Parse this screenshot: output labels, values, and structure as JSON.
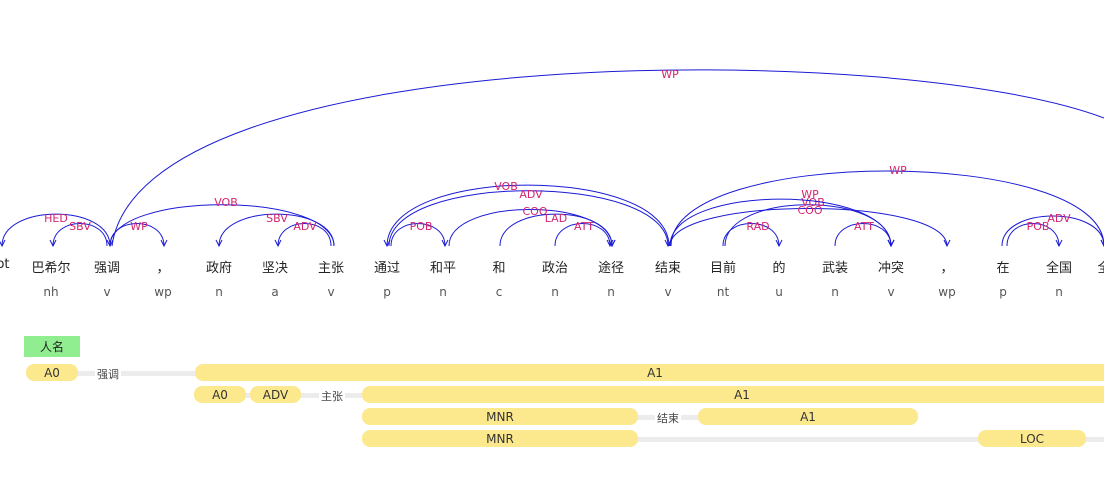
{
  "words": [
    "ot",
    "巴希尔",
    "强调",
    "，",
    "政府",
    "坚决",
    "主张",
    "通过",
    "和平",
    "和",
    "政治",
    "途径",
    "结束",
    "目前",
    "的",
    "武装",
    "冲突",
    "，",
    "在",
    "全国",
    "全"
  ],
  "pos": [
    "",
    "nh",
    "v",
    "wp",
    "n",
    "a",
    "v",
    "p",
    "n",
    "c",
    "n",
    "n",
    "v",
    "nt",
    "u",
    "n",
    "v",
    "wp",
    "p",
    "n",
    ""
  ],
  "arcs": [
    {
      "label": "HED"
    },
    {
      "label": "SBV"
    },
    {
      "label": "WP"
    },
    {
      "label": "VOB"
    },
    {
      "label": "SBV"
    },
    {
      "label": "ADV"
    },
    {
      "label": "POB"
    },
    {
      "label": "COO"
    },
    {
      "label": "LAD"
    },
    {
      "label": "ATT"
    },
    {
      "label": "ADV"
    },
    {
      "label": "VOB"
    },
    {
      "label": "RAD"
    },
    {
      "label": "ATT"
    },
    {
      "label": "VOB"
    },
    {
      "label": "WP"
    },
    {
      "label": "COO"
    },
    {
      "label": "WP"
    },
    {
      "label": "POB"
    },
    {
      "label": "ADV"
    }
  ],
  "ner": {
    "label": "人名"
  },
  "srl": {
    "rows": [
      {
        "predicate": "强调",
        "args": [
          "A0",
          "A1"
        ]
      },
      {
        "predicate": "主张",
        "args": [
          "A0",
          "ADV",
          "A1"
        ]
      },
      {
        "predicate": "结束",
        "args": [
          "MNR",
          "A1"
        ]
      },
      {
        "predicate": "",
        "args": [
          "MNR",
          "LOC"
        ]
      }
    ]
  },
  "colors": {
    "arc": "#1a1ad6",
    "label": "#d6246e",
    "ner": "#90ee90",
    "srl": "#fce98e"
  }
}
